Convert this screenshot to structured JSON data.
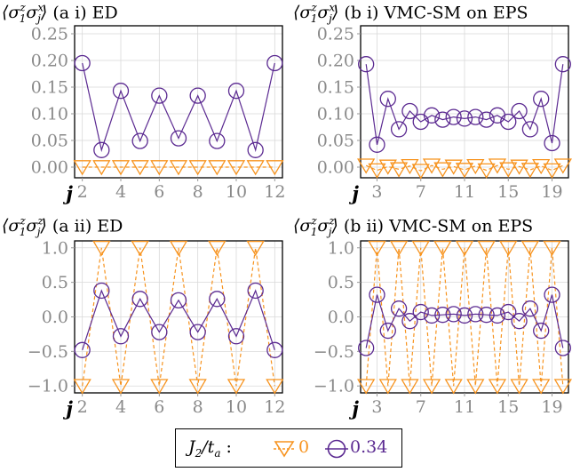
{
  "panel_titles": [
    {
      "label": "(a i) ED"
    },
    {
      "label": "(b i) VMC-SM on EPS"
    },
    {
      "label": "(a ii) ED"
    },
    {
      "label": "(b ii) VMC-SM on EPS"
    }
  ],
  "observable_xx": {
    "base": "⟨σ",
    "s1": "z",
    "i1": "1",
    "mid": "σ",
    "s2": "x",
    "i2": "j",
    "end": "⟩"
  },
  "observable_zz": {
    "base": "⟨σ",
    "s1": "z",
    "i1": "1",
    "mid": "σ",
    "s2": "z",
    "i2": "j",
    "end": "⟩"
  },
  "x_axis_symbol": "j",
  "legend": {
    "title_main": "J",
    "title_sub": "2",
    "title_rest": "/t",
    "title_sub2": "a",
    "colon": " :",
    "entries": [
      {
        "label": "0",
        "color": "#F7931E",
        "marker": "triangle-down"
      },
      {
        "label": "0.34",
        "color": "#5B2A91",
        "marker": "circle"
      }
    ]
  },
  "chart_data": [
    {
      "type": "line",
      "title": "(a i) ED",
      "ylabel": "⟨σ₁ᶻσⱼˣ⟩",
      "xlabel": "j",
      "x_ticks": [
        2,
        4,
        6,
        8,
        10,
        12
      ],
      "y_ticks": [
        "0.00",
        "0.05",
        "0.10",
        "0.15",
        "0.20",
        "0.25"
      ],
      "xlim": [
        1.6,
        12.4
      ],
      "ylim": [
        -0.02,
        0.265
      ],
      "grid": true,
      "series": [
        {
          "name": "0",
          "x": [
            2,
            3,
            4,
            5,
            6,
            7,
            8,
            9,
            10,
            11,
            12
          ],
          "y": [
            0,
            0,
            0,
            0,
            0,
            0,
            0,
            0,
            0,
            0,
            0
          ]
        },
        {
          "name": "0.34",
          "x": [
            2,
            3,
            4,
            5,
            6,
            7,
            8,
            9,
            10,
            11,
            12
          ],
          "y": [
            0.195,
            0.032,
            0.143,
            0.049,
            0.134,
            0.054,
            0.134,
            0.049,
            0.143,
            0.032,
            0.195
          ]
        }
      ]
    },
    {
      "type": "line",
      "title": "(b i) VMC-SM on EPS",
      "ylabel": "⟨σ₁ᶻσⱼˣ⟩",
      "xlabel": "j",
      "x_ticks": [
        3,
        7,
        11,
        15,
        19
      ],
      "y_ticks": [
        "0.00",
        "0.05",
        "0.10",
        "0.15",
        "0.20",
        "0.25"
      ],
      "xlim": [
        1.5,
        20.5
      ],
      "ylim": [
        -0.02,
        0.265
      ],
      "grid": true,
      "series": [
        {
          "name": "0",
          "x": [
            2,
            3,
            4,
            5,
            6,
            7,
            8,
            9,
            10,
            11,
            12,
            13,
            14,
            15,
            16,
            17,
            18,
            19,
            20
          ],
          "y": [
            0.003,
            -0.006,
            0.001,
            -0.004,
            0.002,
            -0.007,
            0.003,
            -0.004,
            0.001,
            -0.005,
            0.002,
            -0.006,
            0.003,
            -0.004,
            0.001,
            -0.005,
            0.002,
            -0.006,
            0.003
          ]
        },
        {
          "name": "0.34",
          "x": [
            2,
            3,
            4,
            5,
            6,
            7,
            8,
            9,
            10,
            11,
            12,
            13,
            14,
            15,
            16,
            17,
            18,
            19,
            20
          ],
          "y": [
            0.193,
            0.042,
            0.128,
            0.071,
            0.105,
            0.085,
            0.097,
            0.089,
            0.094,
            0.091,
            0.094,
            0.089,
            0.097,
            0.085,
            0.105,
            0.071,
            0.128,
            0.045,
            0.193
          ]
        }
      ]
    },
    {
      "type": "line",
      "title": "(a ii) ED",
      "ylabel": "⟨σ₁ᶻσⱼᶻ⟩",
      "xlabel": "j",
      "x_ticks": [
        2,
        4,
        6,
        8,
        10,
        12
      ],
      "y_ticks": [
        "−1.0",
        "−0.5",
        "0.0",
        "0.5",
        "1.0"
      ],
      "xlim": [
        1.6,
        12.4
      ],
      "ylim": [
        -1.1,
        1.1
      ],
      "grid": true,
      "series": [
        {
          "name": "0",
          "x": [
            2,
            3,
            4,
            5,
            6,
            7,
            8,
            9,
            10,
            11,
            12
          ],
          "y": [
            -1,
            1,
            -1,
            1,
            -1,
            1,
            -1,
            1,
            -1,
            1,
            -1
          ]
        },
        {
          "name": "0.34",
          "x": [
            2,
            3,
            4,
            5,
            6,
            7,
            8,
            9,
            10,
            11,
            12
          ],
          "y": [
            -0.48,
            0.38,
            -0.28,
            0.26,
            -0.22,
            0.24,
            -0.22,
            0.26,
            -0.28,
            0.38,
            -0.48
          ]
        }
      ]
    },
    {
      "type": "line",
      "title": "(b ii) VMC-SM on EPS",
      "ylabel": "⟨σ₁ᶻσⱼᶻ⟩",
      "xlabel": "j",
      "x_ticks": [
        3,
        7,
        11,
        15,
        19
      ],
      "y_ticks": [
        "−1.0",
        "−0.5",
        "0.0",
        "0.5",
        "1.0"
      ],
      "xlim": [
        1.5,
        20.5
      ],
      "ylim": [
        -1.1,
        1.1
      ],
      "grid": true,
      "series": [
        {
          "name": "0",
          "x": [
            2,
            3,
            4,
            5,
            6,
            7,
            8,
            9,
            10,
            11,
            12,
            13,
            14,
            15,
            16,
            17,
            18,
            19,
            20
          ],
          "y": [
            -1,
            1,
            -1,
            1,
            -1,
            1,
            -1,
            1,
            -1,
            1,
            -1,
            1,
            -1,
            1,
            -1,
            1,
            -1,
            1,
            -1
          ]
        },
        {
          "name": "0.34",
          "x": [
            2,
            3,
            4,
            5,
            6,
            7,
            8,
            9,
            10,
            11,
            12,
            13,
            14,
            15,
            16,
            17,
            18,
            19,
            20
          ],
          "y": [
            -0.45,
            0.32,
            -0.2,
            0.12,
            -0.06,
            0.07,
            0.02,
            0.03,
            0.04,
            0.02,
            0.04,
            0.03,
            0.02,
            0.07,
            -0.06,
            0.12,
            -0.2,
            0.32,
            -0.45
          ]
        }
      ]
    }
  ]
}
